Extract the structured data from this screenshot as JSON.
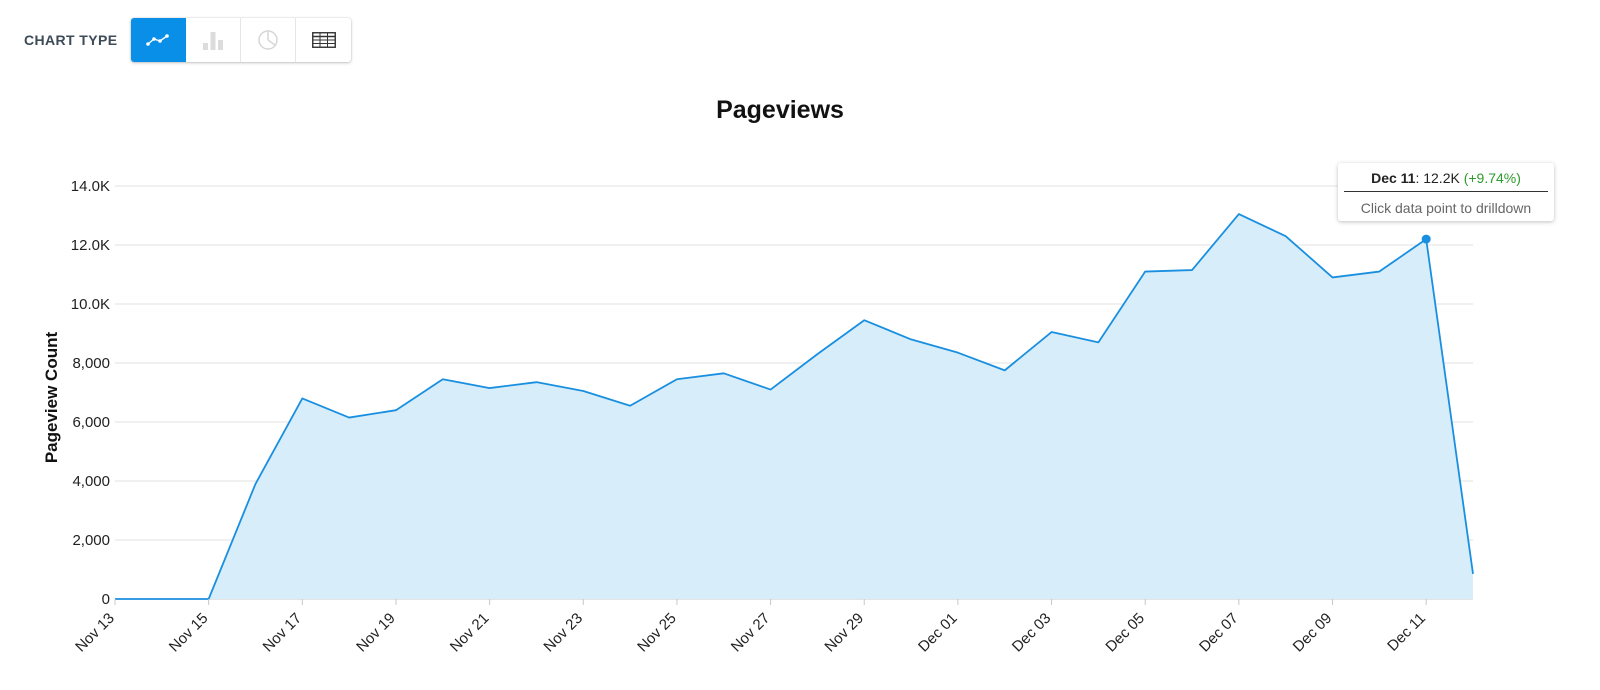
{
  "toolbar": {
    "label": "CHART TYPE",
    "buttons": [
      {
        "icon": "line-chart-icon",
        "active": true
      },
      {
        "icon": "bar-chart-icon",
        "active": false
      },
      {
        "icon": "pie-chart-icon",
        "active": false
      },
      {
        "icon": "table-icon",
        "active": false
      }
    ]
  },
  "tooltip": {
    "date": "Dec 11",
    "value": "12.2K",
    "change": "(+9.74%)",
    "hint": "Click data point to drilldown"
  },
  "colors": {
    "line": "#1a8fe0",
    "area": "#d7eefa",
    "accent": "#0a8fe8",
    "positive": "#2e9a2e"
  },
  "chart_data": {
    "type": "area",
    "title": "Pageviews",
    "xlabel": "",
    "ylabel": "Pageview Count",
    "ylim": [
      0,
      14000
    ],
    "yticks": [
      0,
      2000,
      4000,
      6000,
      8000,
      10000,
      12000,
      14000
    ],
    "ytick_labels": [
      "0",
      "2,000",
      "4,000",
      "6,000",
      "8,000",
      "10.0K",
      "12.0K",
      "14.0K"
    ],
    "xtick_labels": [
      "Nov 13",
      "Nov 15",
      "Nov 17",
      "Nov 19",
      "Nov 21",
      "Nov 23",
      "Nov 25",
      "Nov 27",
      "Nov 29",
      "Dec 01",
      "Dec 03",
      "Dec 05",
      "Dec 07",
      "Dec 09",
      "Dec 11"
    ],
    "grid": true,
    "legend": "none",
    "highlight": "Dec 11",
    "series": [
      {
        "x": [
          "Nov 13",
          "Nov 14",
          "Nov 15",
          "Nov 16",
          "Nov 17",
          "Nov 18",
          "Nov 19",
          "Nov 20",
          "Nov 21",
          "Nov 22",
          "Nov 23",
          "Nov 24",
          "Nov 25",
          "Nov 26",
          "Nov 27",
          "Nov 28",
          "Nov 29",
          "Nov 30",
          "Dec 01",
          "Dec 02",
          "Dec 03",
          "Dec 04",
          "Dec 05",
          "Dec 06",
          "Dec 07",
          "Dec 08",
          "Dec 09",
          "Dec 10",
          "Dec 11",
          "Dec 12"
        ],
        "values": [
          0,
          0,
          0,
          3900,
          6800,
          6150,
          6400,
          7450,
          7150,
          7350,
          7050,
          6550,
          7450,
          7650,
          7100,
          8300,
          9450,
          8800,
          8350,
          7750,
          9050,
          8700,
          11100,
          11150,
          13050,
          12300,
          10900,
          11100,
          12200,
          850
        ]
      }
    ]
  }
}
